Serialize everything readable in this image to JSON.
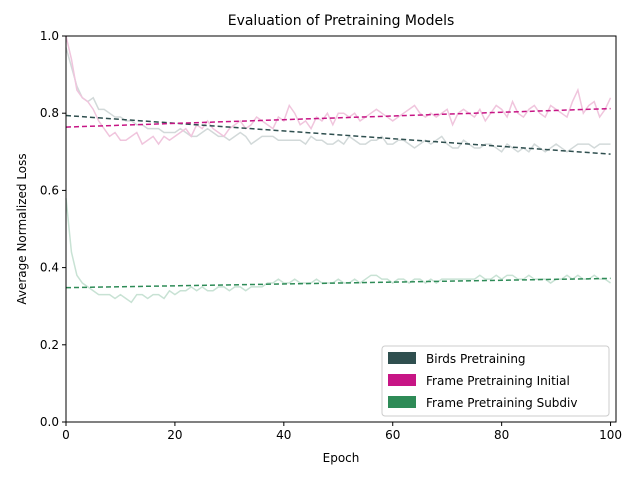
{
  "chart_data": {
    "type": "line",
    "title": "Evaluation of Pretraining Models",
    "xlabel": "Epoch",
    "ylabel": "Average Normalized Loss",
    "xlim": [
      0,
      101
    ],
    "ylim": [
      0,
      1.0
    ],
    "xticks": [
      0,
      20,
      40,
      60,
      80,
      100
    ],
    "xtick_labels": [
      "0",
      "20",
      "40",
      "60",
      "80",
      "100"
    ],
    "yticks": [
      0.0,
      0.2,
      0.4,
      0.6,
      0.8,
      1.0
    ],
    "ytick_labels": [
      "0.0",
      "0.2",
      "0.4",
      "0.6",
      "0.8",
      "1.0"
    ],
    "legend_position": "lower-right",
    "grid": false,
    "series": [
      {
        "name": "Birds Pretraining",
        "color": "#2f4f4f",
        "raw_color": "#d2d9d9",
        "trend": [
          0.794,
          0.694
        ],
        "values": [
          0.97,
          0.92,
          0.87,
          0.84,
          0.83,
          0.84,
          0.81,
          0.81,
          0.8,
          0.79,
          0.79,
          0.78,
          0.78,
          0.77,
          0.77,
          0.76,
          0.76,
          0.76,
          0.75,
          0.75,
          0.75,
          0.76,
          0.75,
          0.74,
          0.74,
          0.75,
          0.76,
          0.75,
          0.74,
          0.74,
          0.73,
          0.74,
          0.75,
          0.74,
          0.72,
          0.73,
          0.74,
          0.74,
          0.74,
          0.73,
          0.73,
          0.73,
          0.73,
          0.73,
          0.72,
          0.74,
          0.73,
          0.73,
          0.72,
          0.72,
          0.73,
          0.72,
          0.74,
          0.73,
          0.72,
          0.72,
          0.73,
          0.73,
          0.74,
          0.72,
          0.72,
          0.73,
          0.73,
          0.72,
          0.71,
          0.72,
          0.73,
          0.72,
          0.73,
          0.74,
          0.72,
          0.71,
          0.71,
          0.73,
          0.72,
          0.71,
          0.71,
          0.72,
          0.72,
          0.71,
          0.7,
          0.72,
          0.71,
          0.7,
          0.71,
          0.7,
          0.72,
          0.71,
          0.7,
          0.71,
          0.72,
          0.71,
          0.7,
          0.71,
          0.72,
          0.72,
          0.72,
          0.71,
          0.72,
          0.72,
          0.72
        ]
      },
      {
        "name": "Frame Pretraining Initial",
        "color": "#c71585",
        "raw_color": "#f0c5dd",
        "trend": [
          0.764,
          0.812
        ],
        "values": [
          1.0,
          0.94,
          0.86,
          0.84,
          0.83,
          0.81,
          0.78,
          0.76,
          0.74,
          0.75,
          0.73,
          0.73,
          0.74,
          0.75,
          0.72,
          0.73,
          0.74,
          0.72,
          0.74,
          0.73,
          0.74,
          0.75,
          0.76,
          0.74,
          0.77,
          0.76,
          0.78,
          0.76,
          0.75,
          0.74,
          0.76,
          0.77,
          0.78,
          0.76,
          0.77,
          0.79,
          0.78,
          0.77,
          0.76,
          0.79,
          0.78,
          0.82,
          0.8,
          0.77,
          0.78,
          0.76,
          0.79,
          0.78,
          0.8,
          0.77,
          0.8,
          0.8,
          0.79,
          0.8,
          0.78,
          0.79,
          0.8,
          0.81,
          0.8,
          0.79,
          0.78,
          0.79,
          0.8,
          0.81,
          0.82,
          0.8,
          0.79,
          0.8,
          0.79,
          0.8,
          0.81,
          0.77,
          0.8,
          0.81,
          0.8,
          0.79,
          0.81,
          0.78,
          0.8,
          0.82,
          0.81,
          0.79,
          0.83,
          0.8,
          0.79,
          0.81,
          0.82,
          0.8,
          0.79,
          0.82,
          0.81,
          0.8,
          0.79,
          0.83,
          0.86,
          0.8,
          0.82,
          0.83,
          0.79,
          0.81,
          0.84
        ]
      },
      {
        "name": "Frame Pretraining Subdiv",
        "color": "#2e8b57",
        "raw_color": "#c8e2d4",
        "trend": [
          0.348,
          0.372
        ],
        "values": [
          0.58,
          0.44,
          0.38,
          0.36,
          0.35,
          0.34,
          0.33,
          0.33,
          0.33,
          0.32,
          0.33,
          0.32,
          0.31,
          0.33,
          0.33,
          0.32,
          0.33,
          0.33,
          0.32,
          0.34,
          0.33,
          0.34,
          0.34,
          0.35,
          0.34,
          0.35,
          0.34,
          0.34,
          0.35,
          0.35,
          0.34,
          0.35,
          0.35,
          0.34,
          0.35,
          0.35,
          0.35,
          0.36,
          0.36,
          0.37,
          0.36,
          0.36,
          0.37,
          0.36,
          0.36,
          0.36,
          0.37,
          0.36,
          0.36,
          0.36,
          0.37,
          0.36,
          0.36,
          0.37,
          0.36,
          0.37,
          0.38,
          0.38,
          0.37,
          0.37,
          0.36,
          0.37,
          0.37,
          0.36,
          0.37,
          0.37,
          0.36,
          0.37,
          0.36,
          0.37,
          0.37,
          0.37,
          0.37,
          0.37,
          0.37,
          0.37,
          0.38,
          0.37,
          0.37,
          0.38,
          0.37,
          0.38,
          0.38,
          0.37,
          0.37,
          0.38,
          0.37,
          0.37,
          0.37,
          0.36,
          0.37,
          0.37,
          0.38,
          0.37,
          0.38,
          0.37,
          0.37,
          0.38,
          0.37,
          0.37,
          0.36
        ]
      }
    ]
  }
}
